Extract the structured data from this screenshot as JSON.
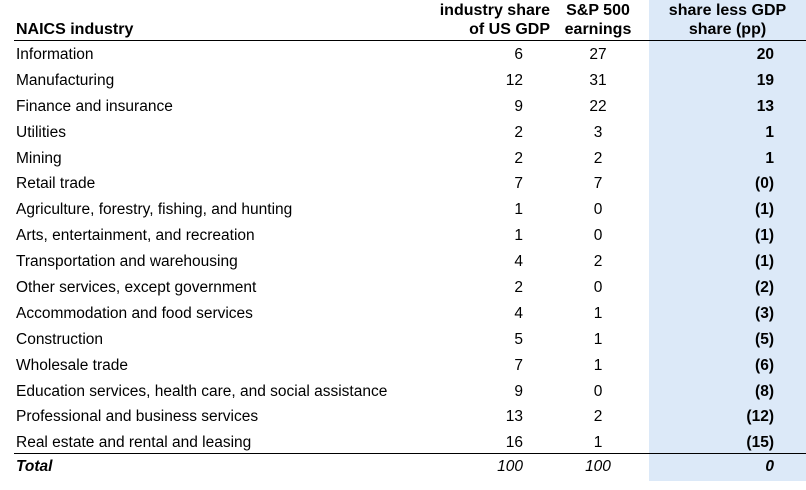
{
  "table": {
    "headers": {
      "industry": "NAICS industry",
      "gdp_line1": "industry share",
      "gdp_line2": "of US GDP",
      "sp_line1": "S&P 500",
      "sp_line2": "earnings",
      "diff_line1": "share less GDP",
      "diff_line2": "share (pp)"
    },
    "rows": [
      {
        "industry": "Information",
        "gdp_share": "6",
        "sp_earnings": "27",
        "diff": "20"
      },
      {
        "industry": "Manufacturing",
        "gdp_share": "12",
        "sp_earnings": "31",
        "diff": "19"
      },
      {
        "industry": "Finance and insurance",
        "gdp_share": "9",
        "sp_earnings": "22",
        "diff": "13"
      },
      {
        "industry": "Utilities",
        "gdp_share": "2",
        "sp_earnings": "3",
        "diff": "1"
      },
      {
        "industry": "Mining",
        "gdp_share": "2",
        "sp_earnings": "2",
        "diff": "1"
      },
      {
        "industry": "Retail trade",
        "gdp_share": "7",
        "sp_earnings": "7",
        "diff": "(0)"
      },
      {
        "industry": "Agriculture, forestry, fishing, and hunting",
        "gdp_share": "1",
        "sp_earnings": "0",
        "diff": "(1)"
      },
      {
        "industry": "Arts, entertainment, and recreation",
        "gdp_share": "1",
        "sp_earnings": "0",
        "diff": "(1)"
      },
      {
        "industry": "Transportation and warehousing",
        "gdp_share": "4",
        "sp_earnings": "2",
        "diff": "(1)"
      },
      {
        "industry": "Other services, except government",
        "gdp_share": "2",
        "sp_earnings": "0",
        "diff": "(2)"
      },
      {
        "industry": "Accommodation and food services",
        "gdp_share": "4",
        "sp_earnings": "1",
        "diff": "(3)"
      },
      {
        "industry": "Construction",
        "gdp_share": "5",
        "sp_earnings": "1",
        "diff": "(5)"
      },
      {
        "industry": "Wholesale trade",
        "gdp_share": "7",
        "sp_earnings": "1",
        "diff": "(6)"
      },
      {
        "industry": "Education services, health care, and social assistance",
        "gdp_share": "9",
        "sp_earnings": "0",
        "diff": "(8)"
      },
      {
        "industry": "Professional and business services",
        "gdp_share": "13",
        "sp_earnings": "2",
        "diff": "(12)"
      },
      {
        "industry": "Real estate and rental and leasing",
        "gdp_share": "16",
        "sp_earnings": "1",
        "diff": "(15)"
      }
    ],
    "total": {
      "label": "Total",
      "gdp_share": "100",
      "sp_earnings": "100",
      "diff": "0"
    }
  },
  "colors": {
    "highlight": "#dce9f8"
  }
}
